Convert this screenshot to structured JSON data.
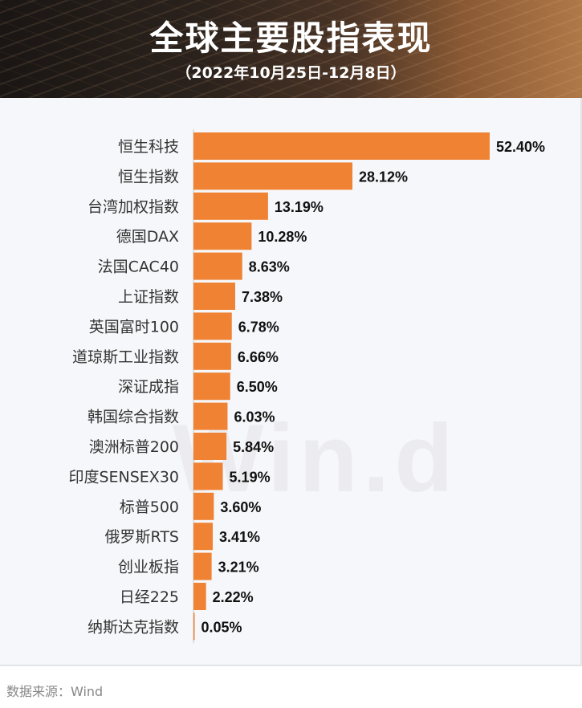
{
  "header": {
    "title": "全球主要股指表现",
    "subtitle": "（2022年10月25日-12月8日）"
  },
  "watermark": "Win.d",
  "source": "数据来源：Wind",
  "colors": {
    "bar": "#ef8233",
    "label": "#111111",
    "category": "#333333"
  },
  "chart_data": {
    "type": "bar",
    "orientation": "horizontal",
    "title": "全球主要股指表现",
    "subtitle": "（2022年10月25日-12月8日）",
    "categories": [
      "恒生科技",
      "恒生指数",
      "台湾加权指数",
      "德国DAX",
      "法国CAC40",
      "上证指数",
      "英国富时100",
      "道琼斯工业指数",
      "深证成指",
      "韩国综合指数",
      "澳洲标普200",
      "印度SENSEX30",
      "标普500",
      "俄罗斯RTS",
      "创业板指",
      "日经225",
      "纳斯达克指数"
    ],
    "values": [
      52.4,
      28.12,
      13.19,
      10.28,
      8.63,
      7.38,
      6.78,
      6.66,
      6.5,
      6.03,
      5.84,
      5.19,
      3.6,
      3.41,
      3.21,
      2.22,
      0.05
    ],
    "value_labels": [
      "52.40%",
      "28.12%",
      "13.19%",
      "10.28%",
      "8.63%",
      "7.38%",
      "6.78%",
      "6.66%",
      "6.50%",
      "6.03%",
      "5.84%",
      "5.19%",
      "3.60%",
      "3.41%",
      "3.21%",
      "2.22%",
      "0.05%"
    ],
    "unit": "%",
    "grid": false,
    "legend": "none"
  }
}
